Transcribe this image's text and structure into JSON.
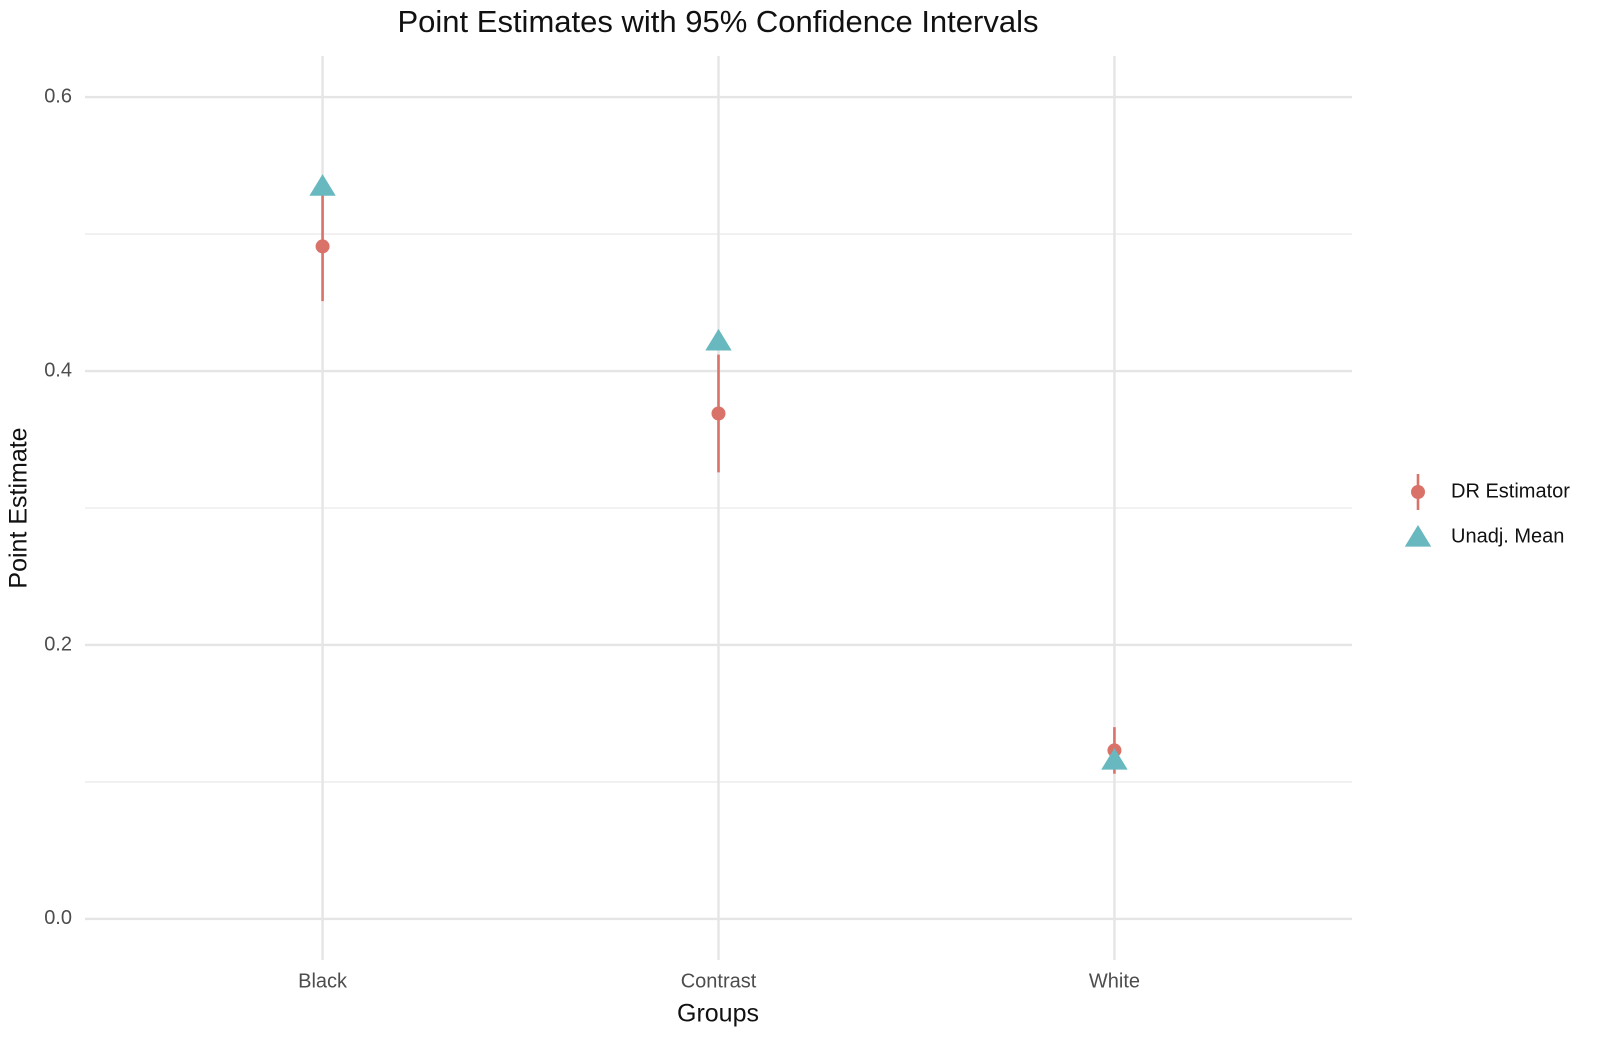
{
  "chart_data": {
    "type": "pointrange",
    "title": "Point Estimates with 95% Confidence Intervals",
    "x_label": "Groups",
    "y_label": "Point Estimate",
    "categories": [
      "Black",
      "Contrast",
      "White"
    ],
    "series": [
      {
        "name": "DR Estimator",
        "color": "#d9736a",
        "marker": "circle",
        "values": [
          0.491,
          0.369,
          0.123
        ],
        "lower": [
          0.451,
          0.326,
          0.106
        ],
        "upper": [
          0.531,
          0.412,
          0.14
        ]
      },
      {
        "name": "Unadj. Mean",
        "color": "#68b8bf",
        "marker": "triangle",
        "values": [
          0.535,
          0.422,
          0.116
        ]
      }
    ],
    "ylim": [
      -0.03,
      0.63
    ],
    "yticks": [
      {
        "value": 0,
        "label": "0.0"
      },
      {
        "value": 0.2,
        "label": "0.2"
      },
      {
        "value": 0.4,
        "label": "0.4"
      },
      {
        "value": 0.6,
        "label": "0.6"
      }
    ],
    "minor_yticks": [
      0.1,
      0.3,
      0.5
    ],
    "grid": true,
    "legend": "right"
  }
}
